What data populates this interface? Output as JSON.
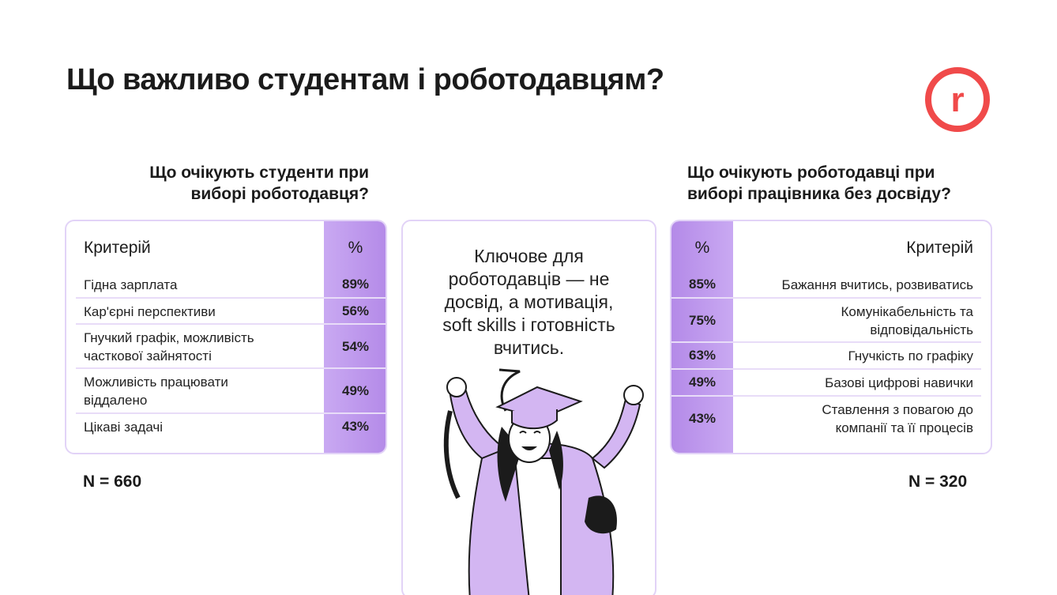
{
  "title": "Що важливо студентам і роботодавцям?",
  "brand": {
    "logo_letter": "r",
    "accent": "#f04a4a",
    "lilac": "#c9a9f2"
  },
  "students": {
    "heading_line1": "Що очікують студенти при",
    "heading_line2": "виборі роботодавця?",
    "col_criterion": "Критерій",
    "col_percent": "%",
    "rows": [
      {
        "l1": "Гідна зарплата",
        "l2": "",
        "pct": "89%"
      },
      {
        "l1": "Кар'єрні перспективи",
        "l2": "",
        "pct": "56%"
      },
      {
        "l1": "Гнучкий графік, можливість",
        "l2": "часткової зайнятості",
        "pct": "54%"
      },
      {
        "l1": "Можливість працювати",
        "l2": "віддалено",
        "pct": "49%"
      },
      {
        "l1": "Цікаві задачі",
        "l2": "",
        "pct": "43%"
      }
    ],
    "n": "N = 660"
  },
  "employers": {
    "heading_line1": "Що очікують роботодавці при",
    "heading_line2": "виборі працівника без досвіду?",
    "col_criterion": "Критерій",
    "col_percent": "%",
    "rows": [
      {
        "l1": "Бажання вчитись, розвиватись",
        "l2": "",
        "pct": "85%"
      },
      {
        "l1": "Комунікабельність та",
        "l2": "відповідальність",
        "pct": "75%"
      },
      {
        "l1": "Гнучкість по графіку",
        "l2": "",
        "pct": "63%"
      },
      {
        "l1": "Базові цифрові навички",
        "l2": "",
        "pct": "49%"
      },
      {
        "l1": "Ставлення з повагою до",
        "l2": "компанії та її процесів",
        "pct": "43%"
      }
    ],
    "n": "N = 320"
  },
  "quote": {
    "l1": "Ключове для",
    "l2": "роботодавців — не",
    "l3": "досвід, а мотивація,",
    "l4": "soft skills і готовність",
    "l5": "вчитись."
  }
}
